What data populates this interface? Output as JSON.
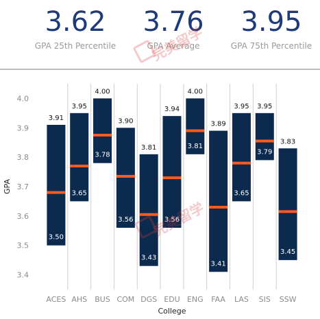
{
  "stats": [
    {
      "value": "3.62",
      "label": "GPA 25th Percentile"
    },
    {
      "value": "3.76",
      "label": "GPA Average"
    },
    {
      "value": "3.95",
      "label": "GPA 75th Percentile"
    }
  ],
  "watermark": "完美留学",
  "colors": {
    "bar": "#0b2a4d",
    "median": "#ff5a1f",
    "stat": "#1f3a7a"
  },
  "chart_data": {
    "type": "bar",
    "xlabel": "College",
    "ylabel": "GPA",
    "ylim": [
      3.35,
      4.05
    ],
    "yticks": [
      3.4,
      3.5,
      3.6,
      3.7,
      3.8,
      3.9,
      4.0
    ],
    "ytick_labels": [
      "3.4",
      "3.5",
      "3.6",
      "3.7",
      "3.8",
      "3.9",
      "4.0"
    ],
    "grid": "vertical separators between categories",
    "categories": [
      "ACES",
      "AHS",
      "BUS",
      "COM",
      "DGS",
      "EDU",
      "ENG",
      "FAA",
      "LAS",
      "SIS",
      "SSW"
    ],
    "low": [
      3.5,
      3.65,
      3.78,
      3.56,
      3.43,
      3.56,
      3.81,
      3.41,
      3.65,
      3.79,
      3.45
    ],
    "high": [
      3.91,
      3.95,
      4.0,
      3.9,
      3.81,
      3.94,
      4.0,
      3.89,
      3.95,
      3.95,
      3.83
    ],
    "average": [
      3.68,
      3.77,
      3.875,
      3.735,
      3.605,
      3.73,
      3.89,
      3.63,
      3.78,
      3.855,
      3.615
    ],
    "low_labels": [
      "3.50",
      "3.65",
      "3.78",
      "3.56",
      "3.43",
      "3.56",
      "3.81",
      "3.41",
      "3.65",
      "3.79",
      "3.45"
    ],
    "high_labels": [
      "3.91",
      "3.95",
      "4.00",
      "3.90",
      "3.81",
      "3.94",
      "4.00",
      "3.89",
      "3.95",
      "3.95",
      "3.83"
    ]
  }
}
